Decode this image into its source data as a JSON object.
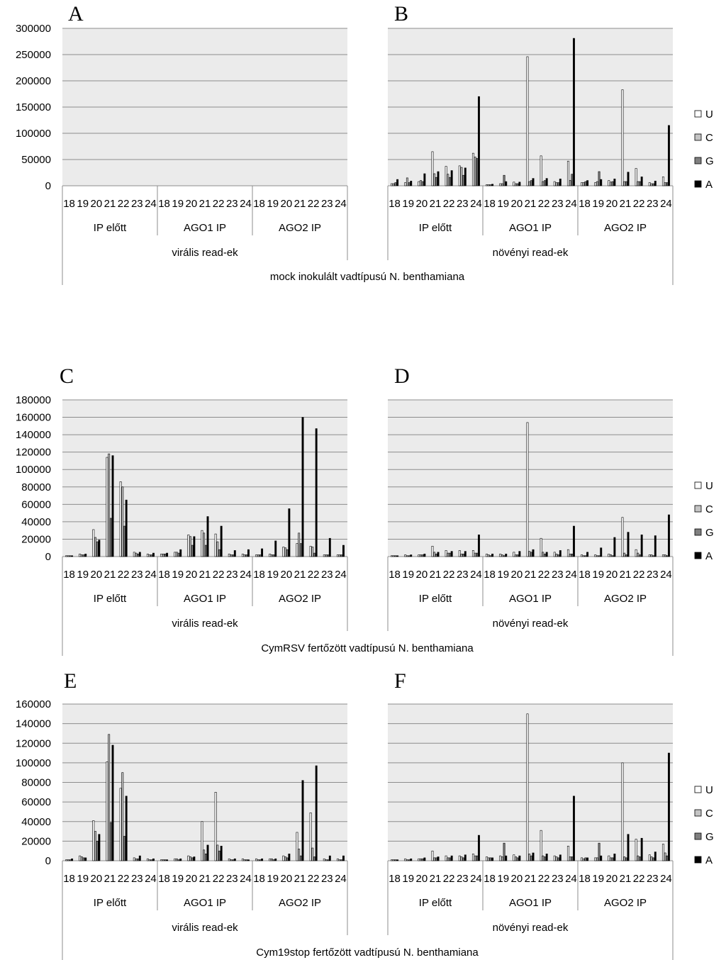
{
  "legend": [
    {
      "label": "U",
      "color": "#ffffff"
    },
    {
      "label": "C",
      "color": "#c4c4c4"
    },
    {
      "label": "G",
      "color": "#7f7f7f"
    },
    {
      "label": "A",
      "color": "#000000"
    }
  ],
  "rows": [
    {
      "title": "mock inokulált vadtípusú N. benthamiana",
      "ticks": [
        "0",
        "50000",
        "100000",
        "150000",
        "200000",
        "250000",
        "300000"
      ],
      "ymax": 300000
    },
    {
      "title": "CymRSV fertőzött vadtípusú N. benthamiana",
      "ticks": [
        "0",
        "20000",
        "40000",
        "60000",
        "80000",
        "100000",
        "120000",
        "140000",
        "160000",
        "180000"
      ],
      "ymax": 180000
    },
    {
      "title": "Cym19stop fertőzött vadtípusú N. benthamiana",
      "ticks": [
        "0",
        "20000",
        "40000",
        "60000",
        "80000",
        "100000",
        "120000",
        "140000",
        "160000"
      ],
      "ymax": 160000
    }
  ],
  "chart_data": [
    {
      "type": "bar",
      "panel": "A",
      "groups": [
        "IP előtt",
        "AGO1 IP",
        "AGO2 IP"
      ],
      "categories": [
        "18",
        "19",
        "20",
        "21",
        "22",
        "23",
        "24"
      ],
      "section_label": "virális read-ek",
      "ylim": [
        0,
        300000
      ],
      "series": [
        {
          "name": "U",
          "values": [
            [
              0,
              0,
              0,
              0,
              0,
              0,
              0
            ],
            [
              0,
              0,
              0,
              0,
              0,
              0,
              0
            ],
            [
              0,
              0,
              0,
              0,
              0,
              0,
              0
            ]
          ]
        },
        {
          "name": "C",
          "values": [
            [
              0,
              0,
              0,
              0,
              0,
              0,
              0
            ],
            [
              0,
              0,
              0,
              0,
              0,
              0,
              0
            ],
            [
              0,
              0,
              0,
              0,
              0,
              0,
              0
            ]
          ]
        },
        {
          "name": "G",
          "values": [
            [
              0,
              0,
              0,
              0,
              0,
              0,
              0
            ],
            [
              0,
              0,
              0,
              0,
              0,
              0,
              0
            ],
            [
              0,
              0,
              0,
              0,
              0,
              0,
              0
            ]
          ]
        },
        {
          "name": "A",
          "values": [
            [
              0,
              0,
              0,
              0,
              0,
              0,
              0
            ],
            [
              0,
              0,
              0,
              0,
              0,
              0,
              0
            ],
            [
              0,
              0,
              0,
              0,
              0,
              0,
              0
            ]
          ]
        }
      ]
    },
    {
      "type": "bar",
      "panel": "B",
      "groups": [
        "IP előtt",
        "AGO1 IP",
        "AGO2 IP"
      ],
      "categories": [
        "18",
        "19",
        "20",
        "21",
        "22",
        "23",
        "24"
      ],
      "section_label": "növényi read-ek",
      "ylim": [
        0,
        300000
      ],
      "series": [
        {
          "name": "U",
          "values": [
            [
              4000,
              6000,
              8000,
              65000,
              37000,
              38000,
              62000
            ],
            [
              2000,
              4000,
              7000,
              246000,
              57000,
              8000,
              47000
            ],
            [
              6000,
              6000,
              10000,
              183000,
              33000,
              6000,
              17000
            ]
          ]
        },
        {
          "name": "C",
          "values": [
            [
              4000,
              15000,
              10000,
              23000,
              22000,
              35000,
              55000
            ],
            [
              2000,
              4000,
              4000,
              8000,
              8000,
              6000,
              10000
            ],
            [
              6000,
              8000,
              7000,
              8000,
              8000,
              4000,
              6000
            ]
          ]
        },
        {
          "name": "G",
          "values": [
            [
              6000,
              6000,
              8000,
              16000,
              16000,
              20000,
              52000
            ],
            [
              2000,
              20000,
              4000,
              10000,
              10000,
              6000,
              22000
            ],
            [
              8000,
              27000,
              8000,
              8000,
              8000,
              4000,
              6000
            ]
          ]
        },
        {
          "name": "A",
          "values": [
            [
              12000,
              9000,
              23000,
              27000,
              29000,
              34000,
              170000
            ],
            [
              3000,
              8000,
              7000,
              14000,
              14000,
              13000,
              281000
            ],
            [
              10000,
              12000,
              13000,
              26000,
              17000,
              9000,
              115000
            ]
          ]
        }
      ]
    },
    {
      "type": "bar",
      "panel": "C",
      "groups": [
        "IP előtt",
        "AGO1 IP",
        "AGO2 IP"
      ],
      "categories": [
        "18",
        "19",
        "20",
        "21",
        "22",
        "23",
        "24"
      ],
      "section_label": "virális read-ek",
      "ylim": [
        0,
        180000
      ],
      "series": [
        {
          "name": "U",
          "values": [
            [
              1000,
              3000,
              31000,
              114000,
              86000,
              5000,
              3000
            ],
            [
              3000,
              5000,
              25000,
              30000,
              26000,
              3000,
              3000
            ],
            [
              2000,
              3000,
              11000,
              15000,
              12000,
              2000,
              2000
            ]
          ]
        },
        {
          "name": "C",
          "values": [
            [
              1000,
              2000,
              22000,
              118000,
              80000,
              4000,
              2000
            ],
            [
              3000,
              5000,
              23000,
              27000,
              17000,
              2000,
              2000
            ],
            [
              2000,
              2000,
              10000,
              27000,
              11000,
              2000,
              2000
            ]
          ]
        },
        {
          "name": "G",
          "values": [
            [
              1000,
              2000,
              17000,
              44000,
              35000,
              3000,
              2000
            ],
            [
              3000,
              4000,
              13000,
              13000,
              8000,
              2000,
              2000
            ],
            [
              2000,
              2000,
              8000,
              15000,
              4000,
              2000,
              2000
            ]
          ]
        },
        {
          "name": "A",
          "values": [
            [
              1000,
              3000,
              19000,
              116000,
              65000,
              5000,
              4000
            ],
            [
              4000,
              8000,
              23000,
              46000,
              35000,
              7000,
              8000
            ],
            [
              9000,
              18000,
              55000,
              160000,
              147000,
              21000,
              13000
            ]
          ]
        }
      ]
    },
    {
      "type": "bar",
      "panel": "D",
      "groups": [
        "IP előtt",
        "AGO1 IP",
        "AGO2 IP"
      ],
      "categories": [
        "18",
        "19",
        "20",
        "21",
        "22",
        "23",
        "24"
      ],
      "section_label": "növényi read-ek",
      "ylim": [
        0,
        180000
      ],
      "series": [
        {
          "name": "U",
          "values": [
            [
              1000,
              2000,
              2000,
              12000,
              7000,
              7000,
              7000
            ],
            [
              3000,
              3000,
              5000,
              154000,
              21000,
              5000,
              8000
            ],
            [
              2000,
              2000,
              3000,
              45000,
              8000,
              2000,
              2000
            ]
          ]
        },
        {
          "name": "C",
          "values": [
            [
              1000,
              1000,
              2000,
              5000,
              4000,
              3000,
              4000
            ],
            [
              2000,
              2000,
              2000,
              6000,
              5000,
              3000,
              3000
            ],
            [
              1000,
              1000,
              2000,
              4000,
              4000,
              2000,
              2000
            ]
          ]
        },
        {
          "name": "G",
          "values": [
            [
              1000,
              1000,
              2000,
              3000,
              4000,
              3000,
              4000
            ],
            [
              1000,
              1000,
              2000,
              5000,
              3000,
              2000,
              3000
            ],
            [
              1000,
              1000,
              1000,
              2000,
              2000,
              1000,
              1000
            ]
          ]
        },
        {
          "name": "A",
          "values": [
            [
              1000,
              2000,
              3000,
              5000,
              6000,
              6000,
              25000
            ],
            [
              3000,
              3000,
              6000,
              8000,
              5000,
              7000,
              35000
            ],
            [
              5000,
              10000,
              22000,
              28000,
              25000,
              24000,
              48000
            ]
          ]
        }
      ]
    },
    {
      "type": "bar",
      "panel": "E",
      "groups": [
        "IP előtt",
        "AGO1 IP",
        "AGO2 IP"
      ],
      "categories": [
        "18",
        "19",
        "20",
        "21",
        "22",
        "23",
        "24"
      ],
      "section_label": "virális read-ek",
      "ylim": [
        0,
        160000
      ],
      "series": [
        {
          "name": "U",
          "values": [
            [
              1000,
              5000,
              41000,
              101000,
              74000,
              3000,
              2000
            ],
            [
              1000,
              2000,
              5000,
              40000,
              70000,
              2000,
              2000
            ],
            [
              2000,
              2000,
              5000,
              29000,
              49000,
              2000,
              2000
            ]
          ]
        },
        {
          "name": "C",
          "values": [
            [
              1000,
              4000,
              30000,
              129000,
              90000,
              2000,
              1000
            ],
            [
              1000,
              2000,
              4000,
              11000,
              16000,
              1000,
              1000
            ],
            [
              1000,
              2000,
              4000,
              12000,
              13000,
              1000,
              1000
            ]
          ]
        },
        {
          "name": "G",
          "values": [
            [
              1000,
              3000,
              20000,
              39000,
              25000,
              2000,
              1000
            ],
            [
              1000,
              1000,
              3000,
              7000,
              10000,
              1000,
              1000
            ],
            [
              1000,
              1000,
              3000,
              5000,
              4000,
              1000,
              1000
            ]
          ]
        },
        {
          "name": "A",
          "values": [
            [
              2000,
              3000,
              27000,
              118000,
              66000,
              5000,
              2000
            ],
            [
              1000,
              2000,
              4000,
              16000,
              15000,
              2000,
              1000
            ],
            [
              2000,
              2000,
              7000,
              82000,
              97000,
              5000,
              5000
            ]
          ]
        }
      ]
    },
    {
      "type": "bar",
      "panel": "F",
      "groups": [
        "IP előtt",
        "AGO1 IP",
        "AGO2 IP"
      ],
      "categories": [
        "18",
        "19",
        "20",
        "21",
        "22",
        "23",
        "24"
      ],
      "section_label": "növényi read-ek",
      "ylim": [
        0,
        160000
      ],
      "series": [
        {
          "name": "U",
          "values": [
            [
              1000,
              2000,
              2000,
              10000,
              5000,
              5000,
              7000
            ],
            [
              4000,
              5000,
              6000,
              150000,
              31000,
              5000,
              15000
            ],
            [
              3000,
              3000,
              5000,
              100000,
              22000,
              6000,
              17000
            ]
          ]
        },
        {
          "name": "C",
          "values": [
            [
              1000,
              1000,
              2000,
              3000,
              3000,
              4000,
              5000
            ],
            [
              3000,
              4000,
              4000,
              7000,
              5000,
              4000,
              4000
            ],
            [
              2000,
              3000,
              3000,
              4000,
              5000,
              4000,
              8000
            ]
          ]
        },
        {
          "name": "G",
          "values": [
            [
              1000,
              1000,
              2000,
              3000,
              3000,
              3000,
              5000
            ],
            [
              3000,
              18000,
              3000,
              5000,
              4000,
              3000,
              4000
            ],
            [
              3000,
              18000,
              3000,
              3000,
              4000,
              3000,
              5000
            ]
          ]
        },
        {
          "name": "A",
          "values": [
            [
              1000,
              2000,
              3000,
              4000,
              5000,
              6000,
              26000
            ],
            [
              3000,
              5000,
              5000,
              8000,
              7000,
              6000,
              66000
            ],
            [
              3000,
              5000,
              7000,
              27000,
              23000,
              9000,
              110000
            ]
          ]
        }
      ]
    }
  ]
}
